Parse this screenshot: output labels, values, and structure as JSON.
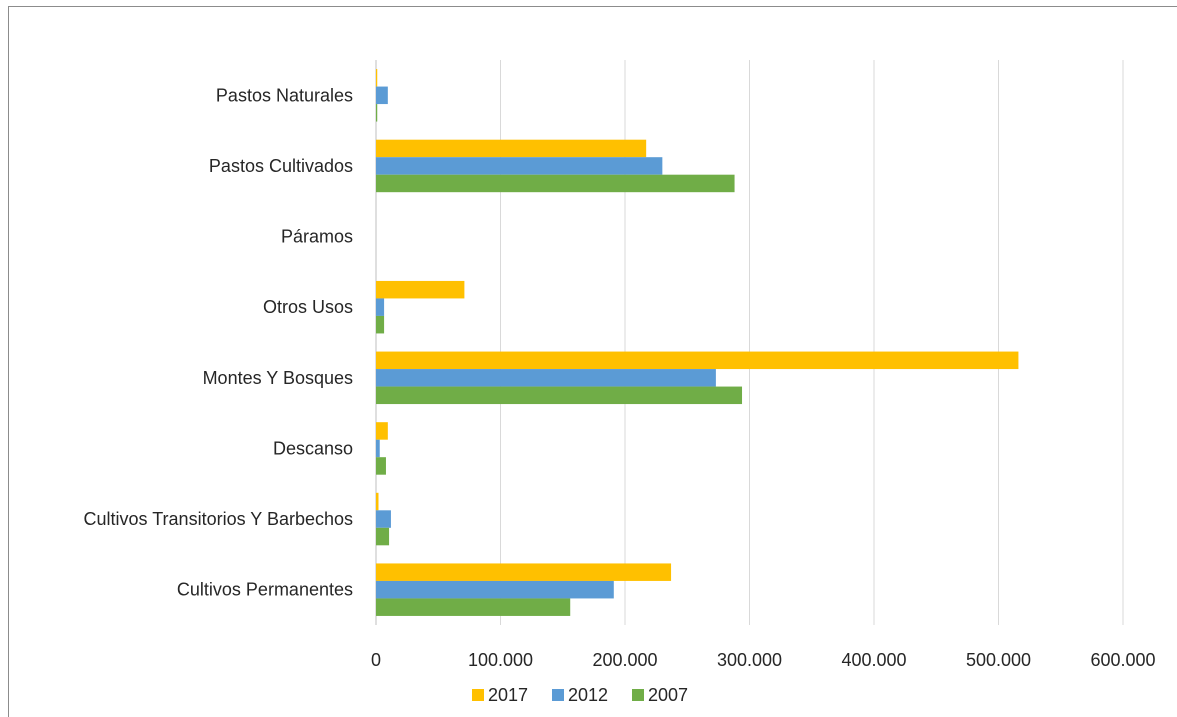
{
  "chart_data": {
    "type": "bar",
    "orientation": "horizontal",
    "title": "",
    "xlabel": "",
    "ylabel": "",
    "xlim": [
      0,
      600000
    ],
    "x_ticks": [
      0,
      100000,
      200000,
      300000,
      400000,
      500000,
      600000
    ],
    "x_tick_labels": [
      "0",
      "100.000",
      "200.000",
      "300.000",
      "400.000",
      "500.000",
      "600.000"
    ],
    "grid": "vertical",
    "legend_position": "bottom",
    "categories": [
      "Cultivos Permanentes",
      "Cultivos Transitorios Y Barbechos",
      "Descanso",
      "Montes Y Bosques",
      "Otros Usos",
      "Páramos",
      "Pastos Cultivados",
      "Pastos Naturales"
    ],
    "series": [
      {
        "name": "2017",
        "color": "#ffc000",
        "values": [
          237000,
          2000,
          9500,
          516000,
          71000,
          0,
          217000,
          1000
        ]
      },
      {
        "name": "2012",
        "color": "#5b9bd5",
        "values": [
          191000,
          12000,
          3000,
          273000,
          6500,
          0,
          230000,
          9500
        ]
      },
      {
        "name": "2007",
        "color": "#70ad47",
        "values": [
          156000,
          10500,
          8000,
          294000,
          6500,
          0,
          288000,
          1000
        ]
      }
    ]
  }
}
